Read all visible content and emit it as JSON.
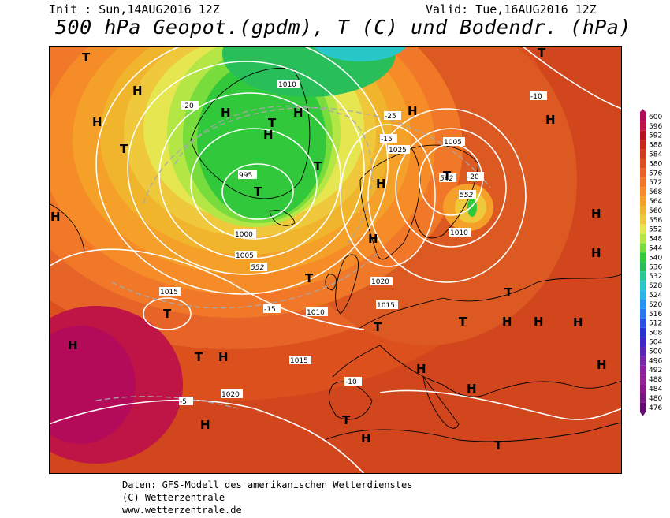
{
  "header": {
    "init_label": "Init : Sun,14AUG2016 12Z",
    "valid_label": "Valid: Tue,16AUG2016 12Z",
    "title": "500 hPa Geopot.(gpdm), T (C) und Bodendr. (hPa)"
  },
  "legend": {
    "values": [
      "600",
      "596",
      "592",
      "588",
      "584",
      "580",
      "576",
      "572",
      "568",
      "564",
      "560",
      "556",
      "552",
      "548",
      "544",
      "540",
      "536",
      "532",
      "528",
      "524",
      "520",
      "516",
      "512",
      "508",
      "504",
      "500",
      "496",
      "492",
      "488",
      "484",
      "480",
      "476"
    ],
    "colors": [
      "#b40a5a",
      "#be1446",
      "#b4141e",
      "#c8281e",
      "#d23c1e",
      "#dc501e",
      "#e66428",
      "#f07828",
      "#f58c28",
      "#f5a028",
      "#f0b42d",
      "#f0c83c",
      "#e6e650",
      "#b4e646",
      "#78dc3c",
      "#32c83c",
      "#28be5a",
      "#28c896",
      "#28c8c8",
      "#28b4e6",
      "#2896f0",
      "#2878f0",
      "#2850e6",
      "#2832d2",
      "#3c28c8",
      "#5a28b4",
      "#7828aa",
      "#8c1ea0",
      "#961e96",
      "#8c148c",
      "#78147d",
      "#640a6e"
    ]
  },
  "map": {
    "pressure_labels": [
      "995",
      "1000",
      "1005",
      "1010",
      "1015",
      "1020",
      "1025"
    ],
    "temp_labels": [
      "-5",
      "-10",
      "-15",
      "-20",
      "-25"
    ],
    "geopot_labels": [
      "552",
      "542"
    ],
    "high_marker": "H",
    "low_marker": "T"
  },
  "credits": {
    "line1": "Daten: GFS-Modell des amerikanischen Wetterdienstes",
    "line2": "(C) Wetterzentrale",
    "line3": "www.wetterzentrale.de"
  }
}
